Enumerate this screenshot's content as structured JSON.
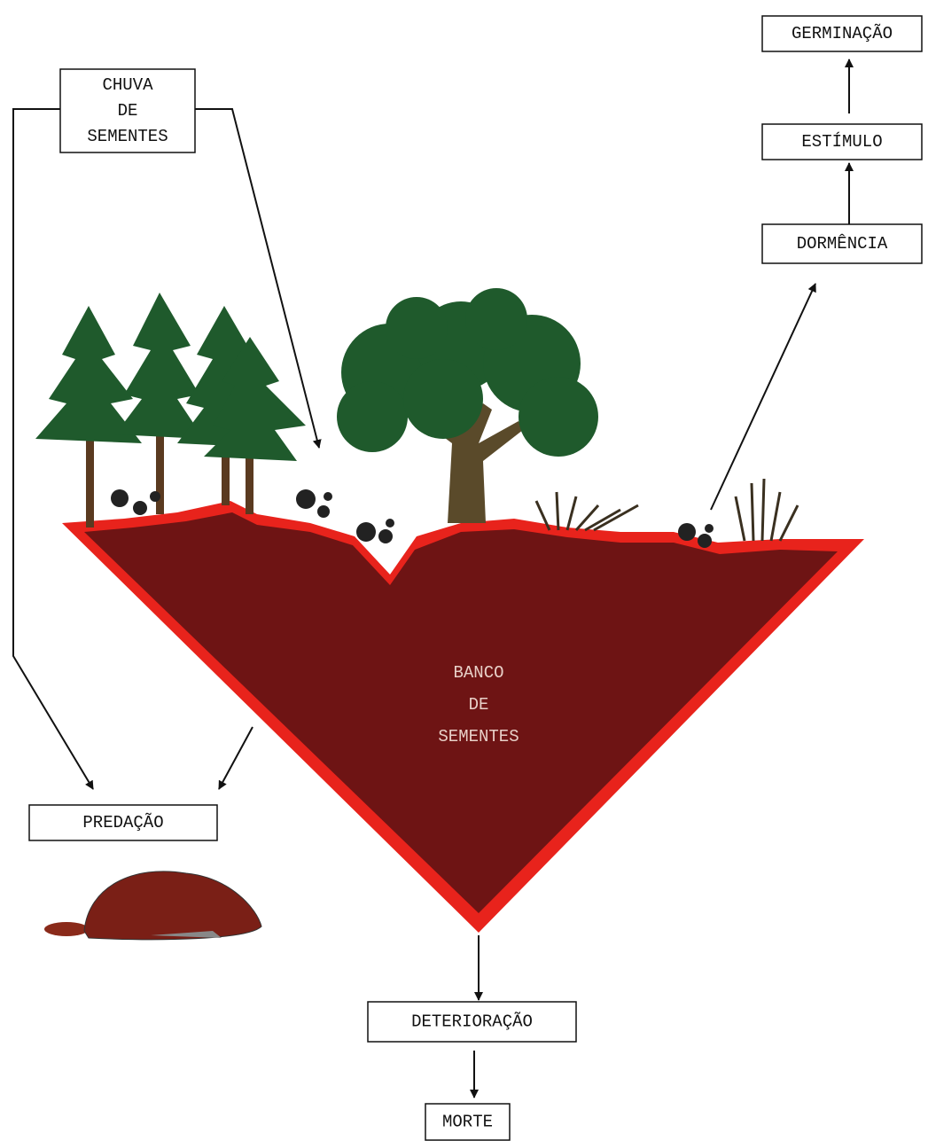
{
  "nodes": [
    {
      "lines": [
        "GERMINAÇÃO"
      ]
    },
    {
      "lines": [
        "ESTÍMULO"
      ]
    },
    {
      "lines": [
        "DORMÊNCIA"
      ]
    },
    {
      "lines": [
        "CHUVA",
        "DE",
        "SEMENTES"
      ]
    },
    {
      "lines": [
        "PREDAÇÃO"
      ]
    },
    {
      "lines": [
        "DETERIORAÇÃO"
      ]
    },
    {
      "lines": [
        "MORTE"
      ]
    },
    {
      "lines": [
        "BANCO",
        "DE",
        "SEMENTES"
      ]
    }
  ]
}
